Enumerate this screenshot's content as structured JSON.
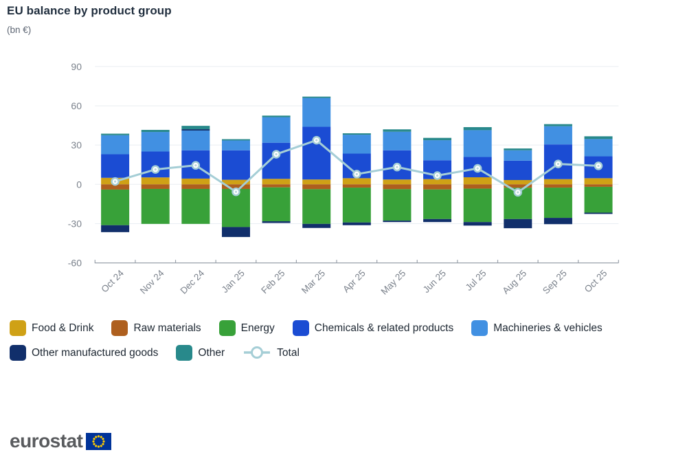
{
  "header": {
    "title": "EU balance by product group",
    "subtitle": "(bn €)"
  },
  "chart_data": {
    "type": "bar",
    "stacked": true,
    "title": "EU balance by product group",
    "xlabel": "",
    "ylabel": "bn €",
    "ylim": [
      -60,
      90
    ],
    "yticks": [
      90,
      60,
      30,
      0,
      -30,
      -60
    ],
    "grid": true,
    "legend_position": "bottom",
    "categories": [
      "Oct 24",
      "Nov 24",
      "Dec 24",
      "Jan 25",
      "Feb 25",
      "Mar 25",
      "Apr 25",
      "May 25",
      "Jun 25",
      "Jul 25",
      "Aug 25",
      "Sep 25",
      "Oct 25"
    ],
    "series": [
      {
        "name": "Food & Drink",
        "color": "#cfa116",
        "values": [
          5.0,
          5.3,
          4.4,
          3.5,
          4.2,
          3.7,
          4.7,
          3.7,
          4.0,
          5.4,
          3.3,
          4.0,
          4.7
        ]
      },
      {
        "name": "Raw materials",
        "color": "#ae5f1e",
        "values": [
          -4.0,
          -3.5,
          -3.5,
          -3.5,
          -2.3,
          -3.7,
          -2.5,
          -3.7,
          -3.9,
          -3.3,
          -2.6,
          -2.5,
          -1.9
        ]
      },
      {
        "name": "Energy",
        "color": "#38a139",
        "values": [
          -27.2,
          -26.7,
          -26.7,
          -29.1,
          -25.9,
          -26.5,
          -26.6,
          -24.0,
          -22.6,
          -25.5,
          -23.9,
          -23.1,
          -19.7
        ]
      },
      {
        "name": "Chemicals & related products",
        "color": "#1b4cd3",
        "values": [
          18.0,
          19.8,
          21.6,
          22.5,
          27.6,
          40.3,
          18.8,
          22.3,
          14.4,
          15.5,
          14.8,
          26.5,
          16.7
        ]
      },
      {
        "name": "Machineries & vehicles",
        "color": "#4190e2",
        "values": [
          14.5,
          14.9,
          15.1,
          7.5,
          19.5,
          22.0,
          14.4,
          14.2,
          15.3,
          20.5,
          7.9,
          13.9,
          13.2
        ]
      },
      {
        "name": "Other manufactured goods",
        "color": "#112f6b",
        "values": [
          -5.3,
          0.0,
          1.0,
          -7.6,
          -1.3,
          -3.1,
          -2.1,
          -1.1,
          -2.3,
          -2.7,
          -7.0,
          -4.8,
          -1.0
        ]
      },
      {
        "name": "Other",
        "color": "#28898b",
        "values": [
          1.2,
          1.6,
          2.6,
          1.0,
          1.2,
          1.0,
          1.1,
          1.8,
          1.8,
          2.3,
          1.4,
          1.6,
          2.1
        ]
      }
    ],
    "line_series": {
      "name": "Total",
      "color": "#a5ced6",
      "marker_fill": "#ffffff",
      "values": [
        2.2,
        11.4,
        14.5,
        -5.7,
        23.0,
        33.7,
        7.8,
        13.2,
        6.7,
        12.2,
        -6.1,
        15.6,
        14.1
      ]
    }
  },
  "footer": {
    "logo_text": "eurostat"
  }
}
